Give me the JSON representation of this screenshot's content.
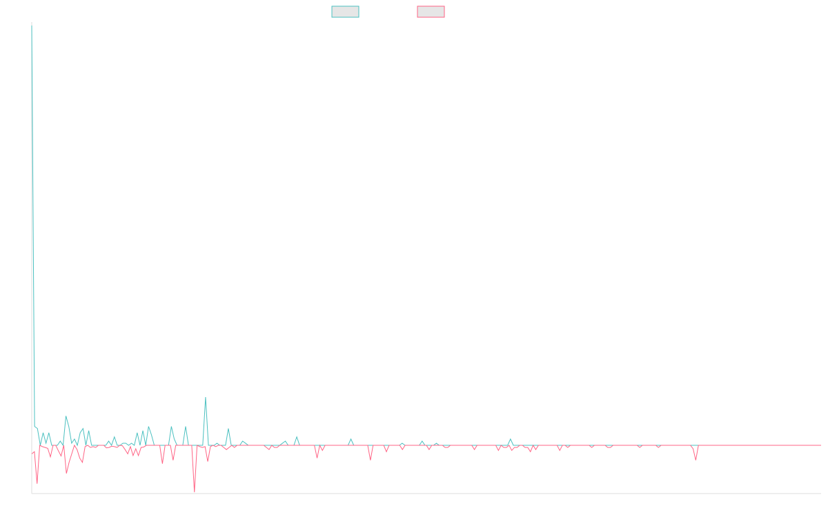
{
  "chart_data": {
    "type": "line",
    "title": "",
    "xlabel": "",
    "ylabel": "",
    "grid": false,
    "legend_position": "top-center",
    "ylim": [
      -0.113,
      1.0
    ],
    "series": [
      {
        "color": "#4bc0c0",
        "values": [
          1.0,
          0.045,
          0.04,
          0.0,
          0.03,
          0.005,
          0.03,
          0.0,
          0.0,
          0.0,
          0.01,
          0.0,
          0.07,
          0.045,
          0.005,
          0.015,
          0.0,
          0.03,
          0.04,
          0.0,
          0.035,
          0.0,
          0.0,
          0.0,
          0.0,
          0.0,
          0.0,
          0.01,
          0.0,
          0.02,
          0.0,
          0.0,
          0.005,
          0.005,
          0.0,
          0.005,
          0.0,
          0.03,
          0.0,
          0.035,
          0.0,
          0.045,
          0.025,
          0.0,
          0.0,
          0.0,
          0.0,
          0.0,
          0.0,
          0.045,
          0.015,
          0.0,
          0.0,
          0.0,
          0.045,
          0.0,
          0.0,
          0.0,
          0.0,
          0.0,
          0.0,
          0.115,
          0.0,
          0.0,
          0.0,
          0.005,
          0.0,
          0.0,
          0.0,
          0.04,
          0.0,
          0.0,
          0.0,
          0.0,
          0.01,
          0.005,
          0.0,
          0.0,
          0.0,
          0.0,
          0.0,
          0.0,
          0.0,
          0.0,
          0.0,
          0.0,
          0.0,
          0.0,
          0.005,
          0.01,
          0.0,
          0.0,
          0.0,
          0.02,
          0.0,
          0.0,
          0.0,
          0.0,
          0.0,
          0.0,
          0.0,
          0.0,
          0.0,
          0.0,
          0.0,
          0.0,
          0.0,
          0.0,
          0.0,
          0.0,
          0.0,
          0.0,
          0.015,
          0.0,
          0.0,
          0.0,
          0.0,
          0.0,
          0.0,
          0.0,
          0.0,
          0.0,
          0.0,
          0.0,
          0.0,
          0.0,
          0.0,
          0.0,
          0.0,
          0.0,
          0.005,
          0.0,
          0.0,
          0.0,
          0.0,
          0.0,
          0.0,
          0.01,
          0.0,
          0.0,
          0.0,
          0.0,
          0.005,
          0.0,
          0.0,
          0.0,
          0.0,
          0.0,
          0.0,
          0.0,
          0.0,
          0.0,
          0.0,
          0.0,
          0.0,
          0.0,
          0.0,
          0.0,
          0.0,
          0.0,
          0.0,
          0.0,
          0.0,
          0.0,
          0.0,
          0.0,
          0.0,
          0.0,
          0.015,
          0.0,
          0.0,
          0.0,
          0.0,
          0.0,
          0.0,
          0.0,
          0.0,
          0.0,
          0.0,
          0.0,
          0.0,
          0.0,
          0.0,
          0.0,
          0.0,
          0.0,
          0.0,
          0.0,
          0.0,
          0.0,
          0.0,
          0.0,
          0.0,
          0.0,
          0.0,
          0.0,
          0.0,
          0.0,
          0.0,
          0.0,
          0.0,
          0.0,
          0.0,
          0.0,
          0.0,
          0.0,
          0.0,
          0.0,
          0.0,
          0.0,
          0.0,
          0.0,
          0.0,
          0.0,
          0.0,
          0.0,
          0.0,
          0.0,
          0.0,
          0.0,
          0.0,
          0.0,
          0.0,
          0.0,
          0.0,
          0.0,
          0.0,
          0.0,
          0.0,
          0.0,
          0.0,
          0.0,
          0.0,
          0.0,
          0.0,
          0.0,
          0.0,
          0.0,
          0.0,
          0.0,
          0.0,
          0.0,
          0.0,
          0.0,
          0.0,
          0.0,
          0.0,
          0.0,
          0.0,
          0.0,
          0.0,
          0.0,
          0.0,
          0.0,
          0.0,
          0.0,
          0.0,
          0.0,
          0.0,
          0.0,
          0.0,
          0.0,
          0.0,
          0.0,
          0.0,
          0.0,
          0.0,
          0.0,
          0.0,
          0.0,
          0.0,
          0.0,
          0.0,
          0.0,
          0.0,
          0.0,
          0.0,
          0.0
        ]
      },
      {
        "color": "#ff6384",
        "values": [
          -0.02,
          -0.015,
          -0.09,
          0.0,
          -0.003,
          -0.005,
          -0.007,
          -0.027,
          0.0,
          0.0,
          -0.013,
          -0.025,
          0.0,
          -0.066,
          -0.04,
          -0.02,
          -0.0,
          -0.01,
          -0.03,
          -0.04,
          -0.003,
          0.0,
          -0.005,
          -0.003,
          -0.005,
          -0.0,
          0.0,
          0.0,
          -0.006,
          -0.005,
          -0.002,
          -0.003,
          -0.005,
          0.0,
          -0.001,
          -0.01,
          -0.02,
          -0.003,
          -0.024,
          -0.008,
          -0.024,
          -0.005,
          -0.004,
          0.0,
          0.0,
          0.0,
          0.0,
          0.0,
          0.0,
          -0.043,
          0.0,
          0.0,
          0.0,
          -0.035,
          0.0,
          0.0,
          0.0,
          0.0,
          0.0,
          0.0,
          0.0,
          -0.11,
          0.0,
          -0.003,
          -0.005,
          -0.003,
          -0.038,
          -0.003,
          0.0,
          -0.003,
          0.0,
          0.0,
          -0.005,
          -0.01,
          -0.005,
          0.0,
          -0.005,
          0.0,
          0.0,
          0.0,
          0.0,
          0.0,
          0.0,
          0.0,
          0.0,
          0.0,
          0.0,
          0.0,
          -0.005,
          -0.01,
          0.0,
          -0.005,
          -0.005,
          0.0,
          0.0,
          0.0,
          0.0,
          0.0,
          0.0,
          0.0,
          0.0,
          0.0,
          0.0,
          0.0,
          0.0,
          0.0,
          0.0,
          -0.03,
          0.0,
          -0.012,
          0.0,
          0.0,
          0.0,
          0.0,
          0.0,
          0.0,
          0.0,
          0.0,
          0.0,
          0.0,
          0.0,
          0.0,
          0.0,
          0.0,
          0.0,
          0.0,
          0.0,
          -0.035,
          0.0,
          0.0,
          0.0,
          0.0,
          0.0,
          -0.015,
          0.0,
          0.0,
          0.0,
          0.0,
          0.0,
          -0.01,
          0.0,
          0.0,
          0.0,
          0.0,
          0.0,
          0.0,
          0.0,
          0.0,
          0.0,
          -0.01,
          0.0,
          0.0,
          0.0,
          0.0,
          0.0,
          -0.005,
          -0.005,
          0.0,
          0.0,
          0.0,
          0.0,
          0.0,
          0.0,
          0.0,
          0.0,
          0.0,
          -0.01,
          0.0,
          0.0,
          0.0,
          0.0,
          0.0,
          0.0,
          0.0,
          0.0,
          -0.012,
          0.0,
          -0.005,
          -0.005,
          0.0,
          -0.012,
          -0.005,
          -0.005,
          0.0,
          0.0,
          -0.005,
          -0.005,
          -0.015,
          0.0,
          -0.01,
          0.0,
          0.0,
          0.0,
          0.0,
          0.0,
          0.0,
          0.0,
          0.0,
          -0.012,
          0.0,
          0.0,
          -0.005,
          0.0,
          0.0,
          0.0,
          0.0,
          0.0,
          0.0,
          0.0,
          0.0,
          -0.005,
          0.0,
          0.0,
          0.0,
          0.0,
          0.0,
          -0.005,
          -0.005,
          0.0,
          0.0,
          0.0,
          0.0,
          0.0,
          0.0,
          0.0,
          0.0,
          0.0,
          0.0,
          -0.005,
          0.0,
          0.0,
          0.0,
          0.0,
          0.0,
          0.0,
          -0.005,
          0.0,
          0.0,
          0.0,
          0.0,
          0.0,
          0.0,
          0.0,
          0.0,
          0.0,
          0.0,
          0.0,
          0.0,
          -0.008,
          -0.035,
          0.0,
          0.0,
          0.0,
          0.0,
          0.0,
          0.0,
          0.0,
          0.0,
          0.0,
          0.0,
          0.0,
          0.0,
          0.0,
          0.0,
          0.0,
          0.0,
          0.0,
          0.0,
          0.0,
          0.0,
          0.0,
          0.0,
          0.0,
          0.0,
          0.0,
          0.0,
          0.0,
          0.0,
          0.0,
          0.0,
          0.0,
          0.0,
          0.0,
          0.0,
          0.0,
          0.0,
          0.0,
          0.0,
          0.0,
          0.0,
          0.0,
          0.0,
          0.0,
          0.0,
          0.0,
          0.0,
          0.0
        ]
      }
    ],
    "legend_fill": "#e6e6e6"
  }
}
